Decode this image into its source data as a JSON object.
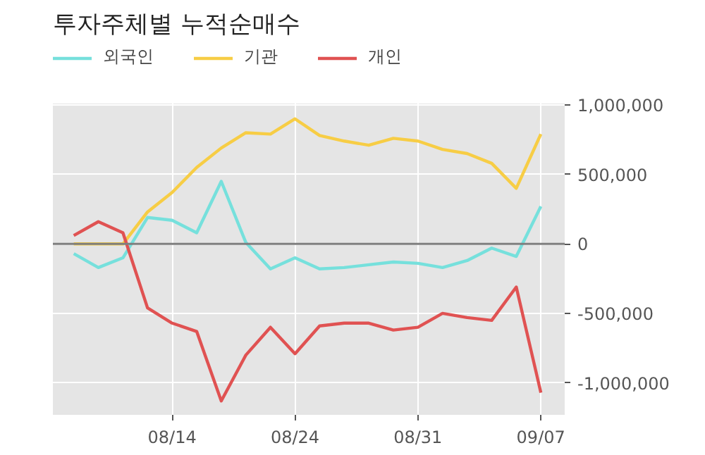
{
  "chart_data": {
    "type": "line",
    "title": "투자주체별 누적순매수",
    "categories": [
      null,
      null,
      null,
      null,
      "08/14",
      null,
      null,
      null,
      null,
      "08/24",
      null,
      null,
      null,
      null,
      "08/31",
      null,
      null,
      null,
      null,
      "09/07"
    ],
    "series": [
      {
        "name": "외국인",
        "color": "#76e0dc",
        "values": [
          -70000,
          -170000,
          -100000,
          190000,
          170000,
          80000,
          450000,
          10000,
          -180000,
          -100000,
          -180000,
          -170000,
          -150000,
          -130000,
          -140000,
          -170000,
          -120000,
          -30000,
          -90000,
          270000
        ]
      },
      {
        "name": "기관",
        "color": "#f7cd45",
        "values": [
          0,
          0,
          0,
          230000,
          370000,
          550000,
          690000,
          800000,
          790000,
          900000,
          780000,
          740000,
          710000,
          760000,
          740000,
          680000,
          650000,
          580000,
          400000,
          790000
        ]
      },
      {
        "name": "개인",
        "color": "#e05252",
        "values": [
          60000,
          160000,
          80000,
          -460000,
          -570000,
          -630000,
          -1130000,
          -800000,
          -600000,
          -790000,
          -590000,
          -570000,
          -570000,
          -620000,
          -600000,
          -500000,
          -530000,
          -550000,
          -310000,
          -1070000
        ]
      }
    ],
    "ylim": [
      -1230000,
      1010000
    ],
    "yticks": [
      {
        "value": -1000000,
        "label": "-1,000,000"
      },
      {
        "value": -500000,
        "label": "-500,000"
      },
      {
        "value": 0,
        "label": "0"
      },
      {
        "value": 500000,
        "label": "500,000"
      },
      {
        "value": 1000000,
        "label": "1,000,000"
      }
    ],
    "ref_lines": [
      {
        "axis": "y",
        "value": 0,
        "color": "#7f7f7f"
      }
    ],
    "grid": true,
    "legend": "top left"
  }
}
